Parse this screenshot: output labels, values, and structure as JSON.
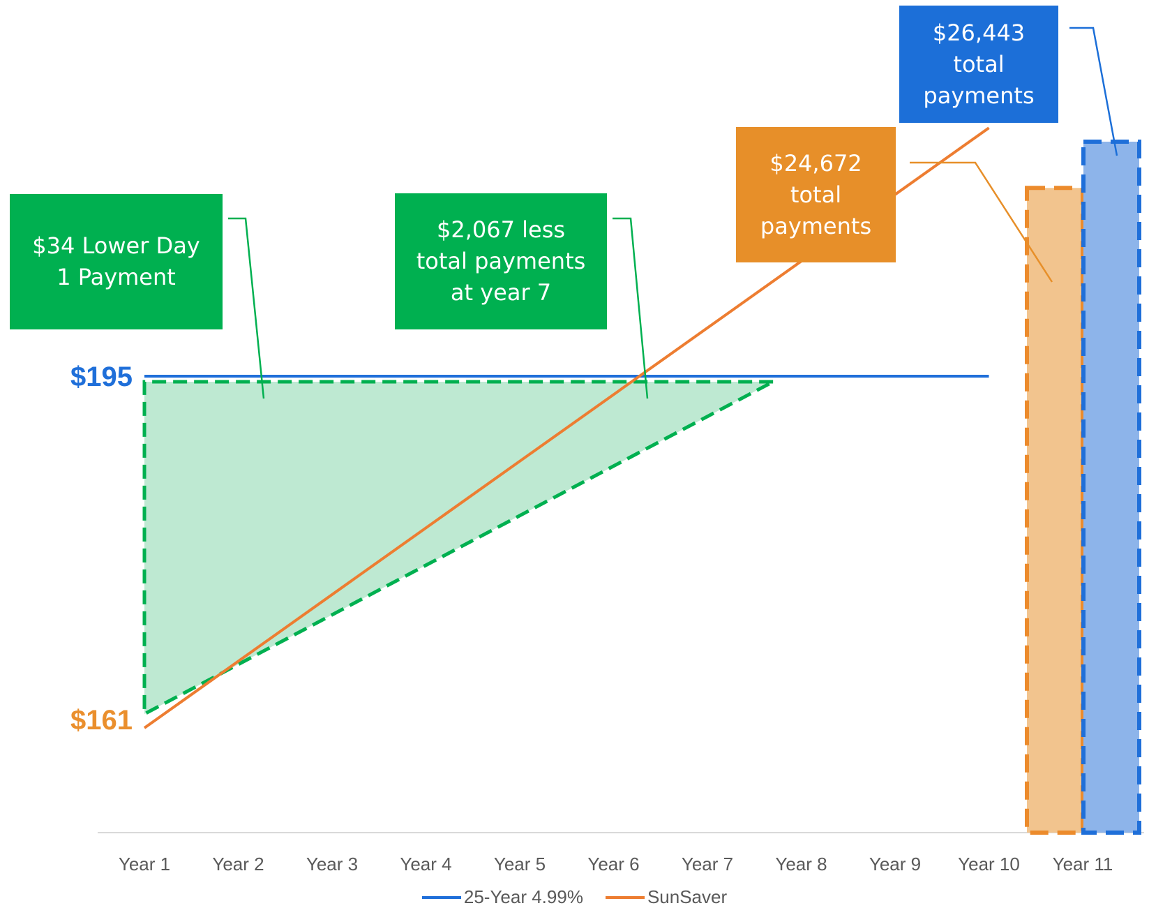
{
  "chart_data": {
    "type": "line",
    "categories": [
      "Year 1",
      "Year 2",
      "Year 3",
      "Year 4",
      "Year 5",
      "Year 6",
      "Year 7",
      "Year 8",
      "Year 9",
      "Year 10",
      "Year 11"
    ],
    "series": [
      {
        "name": "25-Year 4.99%",
        "color": "#1F6FD9",
        "x": [
          1,
          10
        ],
        "values": [
          195,
          195
        ]
      },
      {
        "name": "SunSaver",
        "color": "#ED7D31",
        "x": [
          1,
          10
        ],
        "values": [
          161,
          219
        ]
      }
    ],
    "savings_area": {
      "color": "#00B050",
      "fill": "#BEE9D2",
      "x_start": 1,
      "x_cross": 7.7,
      "top": 195,
      "bottom": 161
    },
    "bars": [
      {
        "series": "SunSaver",
        "total": 24672,
        "fill": "#F2C48E",
        "border": "#EC8B2C"
      },
      {
        "series": "25-Year 4.99%",
        "total": 26443,
        "fill": "#8DB4EA",
        "border": "#1F6FD9"
      }
    ],
    "value_labels": [
      {
        "text": "$195",
        "value": 195,
        "color": "#1F6FD9"
      },
      {
        "text": "$161",
        "value": 161,
        "color": "#EA8F2D"
      }
    ],
    "callouts": [
      {
        "text": "$34 Lower Day\n1 Payment",
        "color": "#00B050"
      },
      {
        "text": "$2,067 less\ntotal payments\nat year 7",
        "color": "#00B050"
      },
      {
        "text": "$24,672\ntotal\npayments",
        "color": "#E78F29"
      },
      {
        "text": "$26,443\ntotal\npayments",
        "color": "#1C6FD8"
      }
    ],
    "legend": {
      "position": "bottom"
    }
  }
}
